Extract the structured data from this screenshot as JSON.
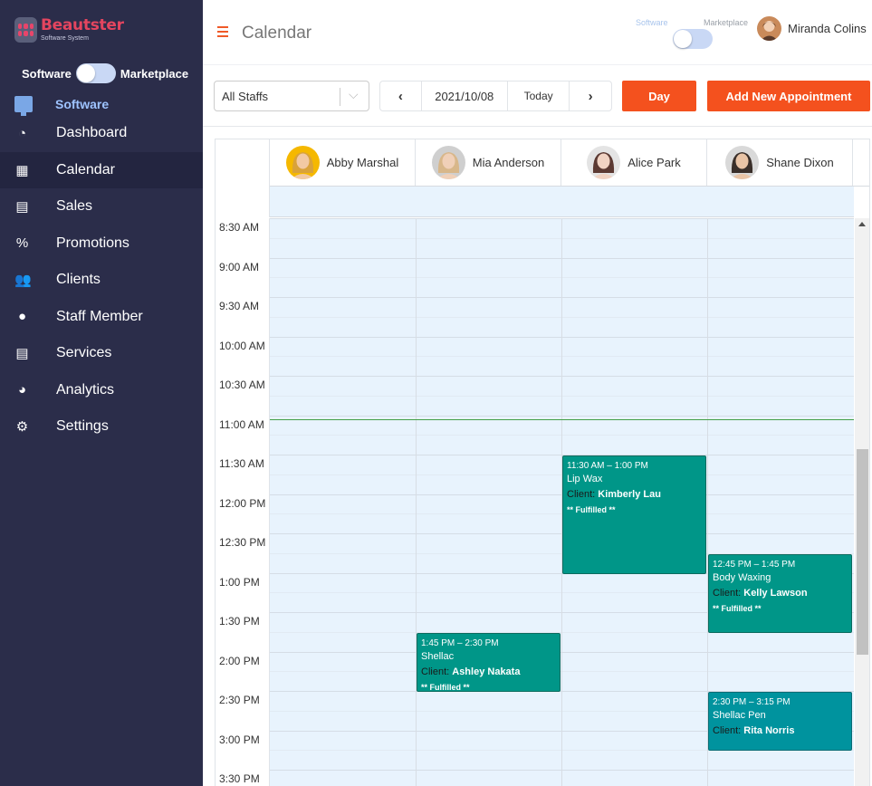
{
  "app": {
    "logo_title": "Beautster",
    "logo_subtitle": "Software System"
  },
  "sidebar": {
    "toggle_left": "Software",
    "toggle_right": "Marketplace",
    "section_label": "Software",
    "items": [
      {
        "label": "Dashboard",
        "icon": "dashboard-icon",
        "glyph": "◔"
      },
      {
        "label": "Calendar",
        "icon": "calendar-icon",
        "glyph": "▦",
        "active": true
      },
      {
        "label": "Sales",
        "icon": "receipt-icon",
        "glyph": "▤"
      },
      {
        "label": "Promotions",
        "icon": "percent-icon",
        "glyph": "%"
      },
      {
        "label": "Clients",
        "icon": "users-icon",
        "glyph": "👥"
      },
      {
        "label": "Staff Member",
        "icon": "user-icon",
        "glyph": "●"
      },
      {
        "label": "Services",
        "icon": "clipboard-icon",
        "glyph": "▤"
      },
      {
        "label": "Analytics",
        "icon": "pie-chart-icon",
        "glyph": "◕"
      },
      {
        "label": "Settings",
        "icon": "gear-icon",
        "glyph": "⚙"
      }
    ]
  },
  "header": {
    "title": "Calendar",
    "toggle_left": "Software",
    "toggle_right": "Marketplace",
    "user_name": "Miranda Colins"
  },
  "toolbar": {
    "staff_filter": "All Staffs",
    "prev": "‹",
    "date": "2021/10/08",
    "today": "Today",
    "next": "›",
    "view_button": "Day",
    "add_button": "Add New Appointment"
  },
  "calendar": {
    "staff": [
      {
        "name": "Abby Marshal",
        "skin": "#f2c9a3",
        "hair": "#d9a23a",
        "bg": "#f5b800"
      },
      {
        "name": "Mia Anderson",
        "skin": "#f0d0b8",
        "hair": "#d8b78a",
        "bg": "#cfcfcf"
      },
      {
        "name": "Alice Park",
        "skin": "#f1d3c3",
        "hair": "#5c3a33",
        "bg": "#e4e4e4"
      },
      {
        "name": "Shane Dixon",
        "skin": "#e9c4a6",
        "hair": "#3a2f2a",
        "bg": "#d9d9d9"
      }
    ],
    "times": [
      "8:30 AM",
      "9:00 AM",
      "9:30 AM",
      "10:00 AM",
      "10:30 AM",
      "11:00 AM",
      "11:30 AM",
      "12:00 PM",
      "12:30 PM",
      "1:00 PM",
      "1:30 PM",
      "2:00 PM",
      "2:30 PM",
      "3:00 PM",
      "3:30 PM"
    ],
    "current_time": "11:00 AM",
    "appointments": [
      {
        "staff": "Alice Park",
        "time": "11:30 AM – 1:00 PM",
        "start": "11:30 AM",
        "end": "1:00 PM",
        "service": "Lip Wax",
        "client_label": "Client:",
        "client": "Kimberly Lau",
        "status": "** Fulfilled **",
        "color": "#009688"
      },
      {
        "staff": "Shane Dixon",
        "time": "12:45 PM – 1:45 PM",
        "start": "12:45 PM",
        "end": "1:45 PM",
        "service": "Body Waxing",
        "client_label": "Client:",
        "client": "Kelly Lawson",
        "status": "** Fulfilled **",
        "color": "#009688"
      },
      {
        "staff": "Mia Anderson",
        "time": "1:45 PM – 2:30 PM",
        "start": "1:45 PM",
        "end": "2:30 PM",
        "service": "Shellac",
        "client_label": "Client:",
        "client": "Ashley Nakata",
        "status": "** Fulfilled **",
        "color": "#009688"
      },
      {
        "staff": "Shane Dixon",
        "time": "2:30 PM – 3:15 PM",
        "start": "2:30 PM",
        "end": "3:15 PM",
        "service": "Shellac Pen",
        "client_label": "Client:",
        "client": "Rita Norris",
        "status": "",
        "color": "#00939e"
      }
    ]
  }
}
